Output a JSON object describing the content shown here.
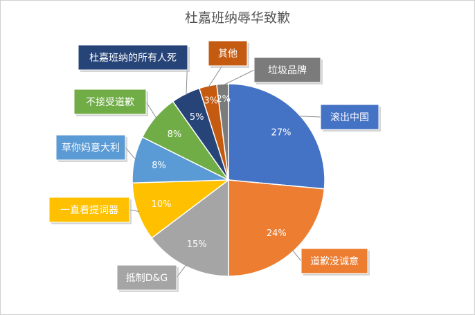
{
  "chart_data": {
    "type": "pie",
    "title": "杜嘉班纳辱华致歉",
    "slices": [
      {
        "label": "滚出中国",
        "value": 27,
        "display": "27%",
        "color": "#4472C4"
      },
      {
        "label": "道歉没诚意",
        "value": 24,
        "display": "24%",
        "color": "#ED7D31"
      },
      {
        "label": "抵制D&G",
        "value": 15,
        "display": "15%",
        "color": "#A5A5A5"
      },
      {
        "label": "一直看提词器",
        "value": 10,
        "display": "10%",
        "color": "#FFC000"
      },
      {
        "label": "草你妈意大利",
        "value": 8,
        "display": "8%",
        "color": "#5B9BD5"
      },
      {
        "label": "不接受道歉",
        "value": 8,
        "display": "8%",
        "color": "#70AD47"
      },
      {
        "label": "杜嘉班纳的所有人死",
        "value": 5,
        "display": "5%",
        "color": "#264478"
      },
      {
        "label": "其他",
        "value": 3,
        "display": "3%",
        "color": "#C55A11"
      },
      {
        "label": "垃圾品牌",
        "value": 2,
        "display": "2%",
        "color": "#7B7B7B"
      }
    ],
    "legend": "none",
    "label_style": "callout"
  }
}
